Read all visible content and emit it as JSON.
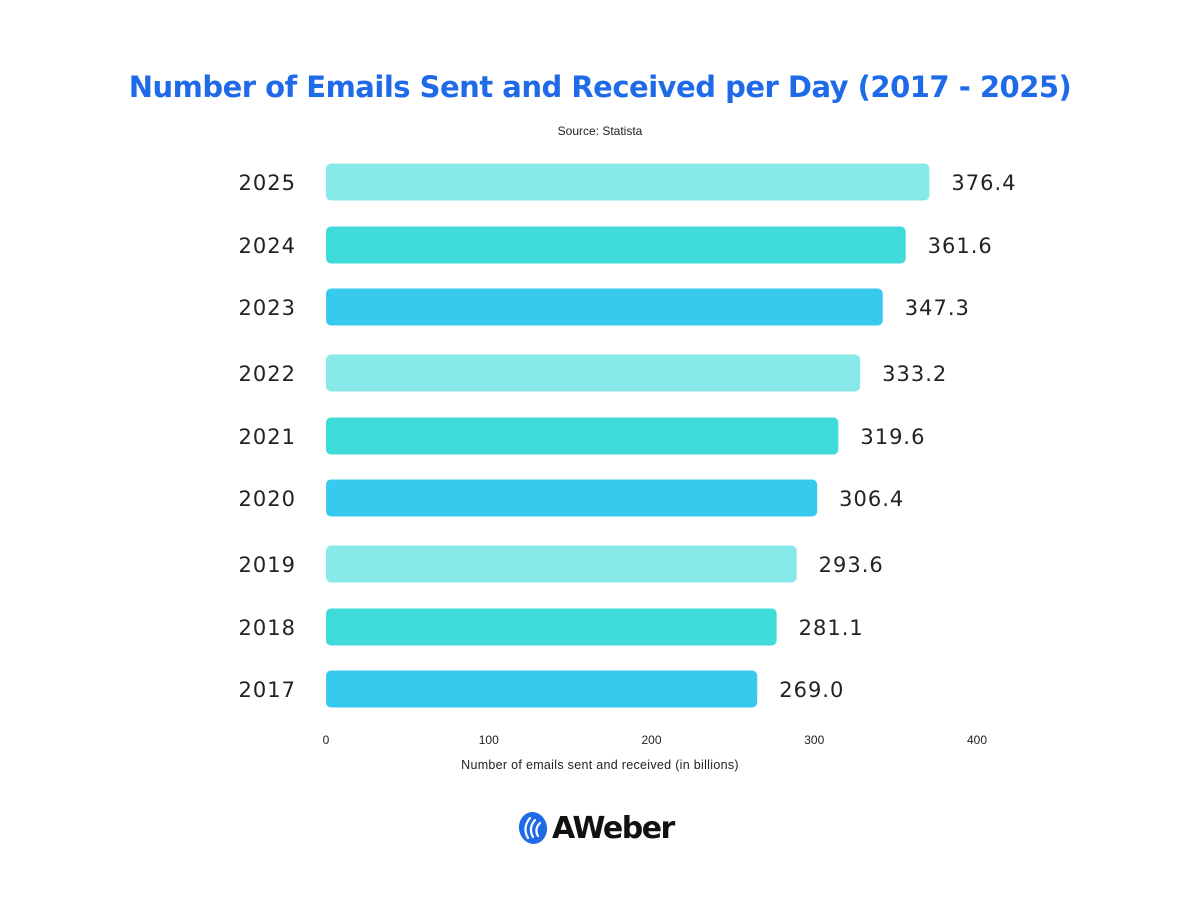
{
  "chart_data": {
    "type": "bar",
    "orientation": "horizontal",
    "title": "Number of Emails Sent and Received per Day (2017 - 2025)",
    "subtitle": "Source: Statista",
    "xlabel": "Number of emails sent and received (in billions)",
    "ylabel": "",
    "xlim": [
      0,
      400
    ],
    "xticks": [
      "0",
      "100",
      "200",
      "300",
      "400"
    ],
    "grid": false,
    "categories": [
      "2025",
      "2024",
      "2023",
      "2022",
      "2021",
      "2020",
      "2019",
      "2018",
      "2017"
    ],
    "values": [
      376.4,
      361.6,
      347.3,
      333.2,
      319.6,
      306.4,
      293.6,
      281.1,
      269.0
    ],
    "value_labels": [
      "376.4",
      "361.6",
      "347.3",
      "333.2",
      "319.6",
      "306.4",
      "293.6",
      "281.1",
      "269.0"
    ],
    "colors": [
      "#88eae8",
      "#3fdbd8",
      "#38c9ef",
      "#88eae8",
      "#3fdbd8",
      "#38c9ef",
      "#88eae8",
      "#3fdbd8",
      "#38c9ef"
    ],
    "title_color": "#1f6ae8"
  },
  "logo": {
    "text": "AWeber",
    "brand_color": "#1f6ae8"
  }
}
